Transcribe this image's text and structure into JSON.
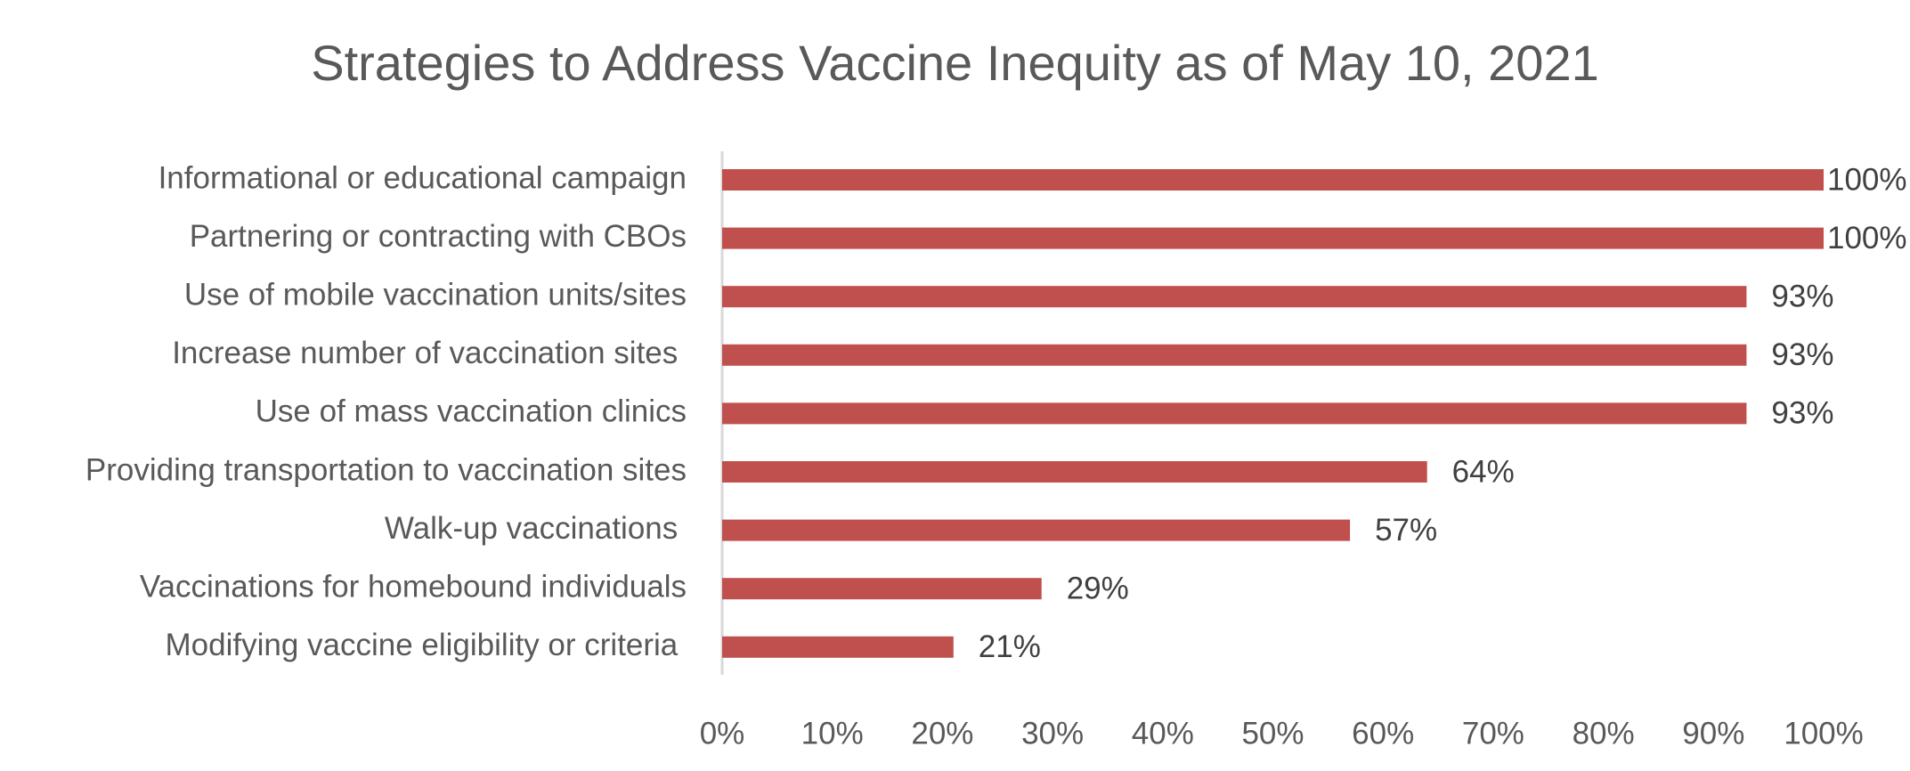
{
  "chart_data": {
    "type": "bar",
    "orientation": "horizontal",
    "title": "Strategies to Address Vaccine Inequity as of May 10, 2021",
    "categories": [
      "Informational or educational campaign",
      "Partnering or contracting with CBOs",
      "Use of mobile vaccination units/sites",
      "Increase number of vaccination sites ",
      "Use of mass vaccination clinics",
      "Providing transportation to vaccination sites",
      "Walk-up vaccinations ",
      "Vaccinations for homebound individuals",
      "Modifying vaccine eligibility or criteria "
    ],
    "values": [
      100,
      100,
      93,
      93,
      93,
      64,
      57,
      29,
      21
    ],
    "data_labels": [
      "100%",
      "100%",
      "93%",
      "93%",
      "93%",
      "64%",
      "57%",
      "29%",
      "21%"
    ],
    "x_ticks": [
      "0%",
      "10%",
      "20%",
      "30%",
      "40%",
      "50%",
      "60%",
      "70%",
      "80%",
      "90%",
      "100%"
    ],
    "xlim": [
      0,
      100
    ],
    "grid": false,
    "legend": "none",
    "bar_color": "#C0504D"
  }
}
